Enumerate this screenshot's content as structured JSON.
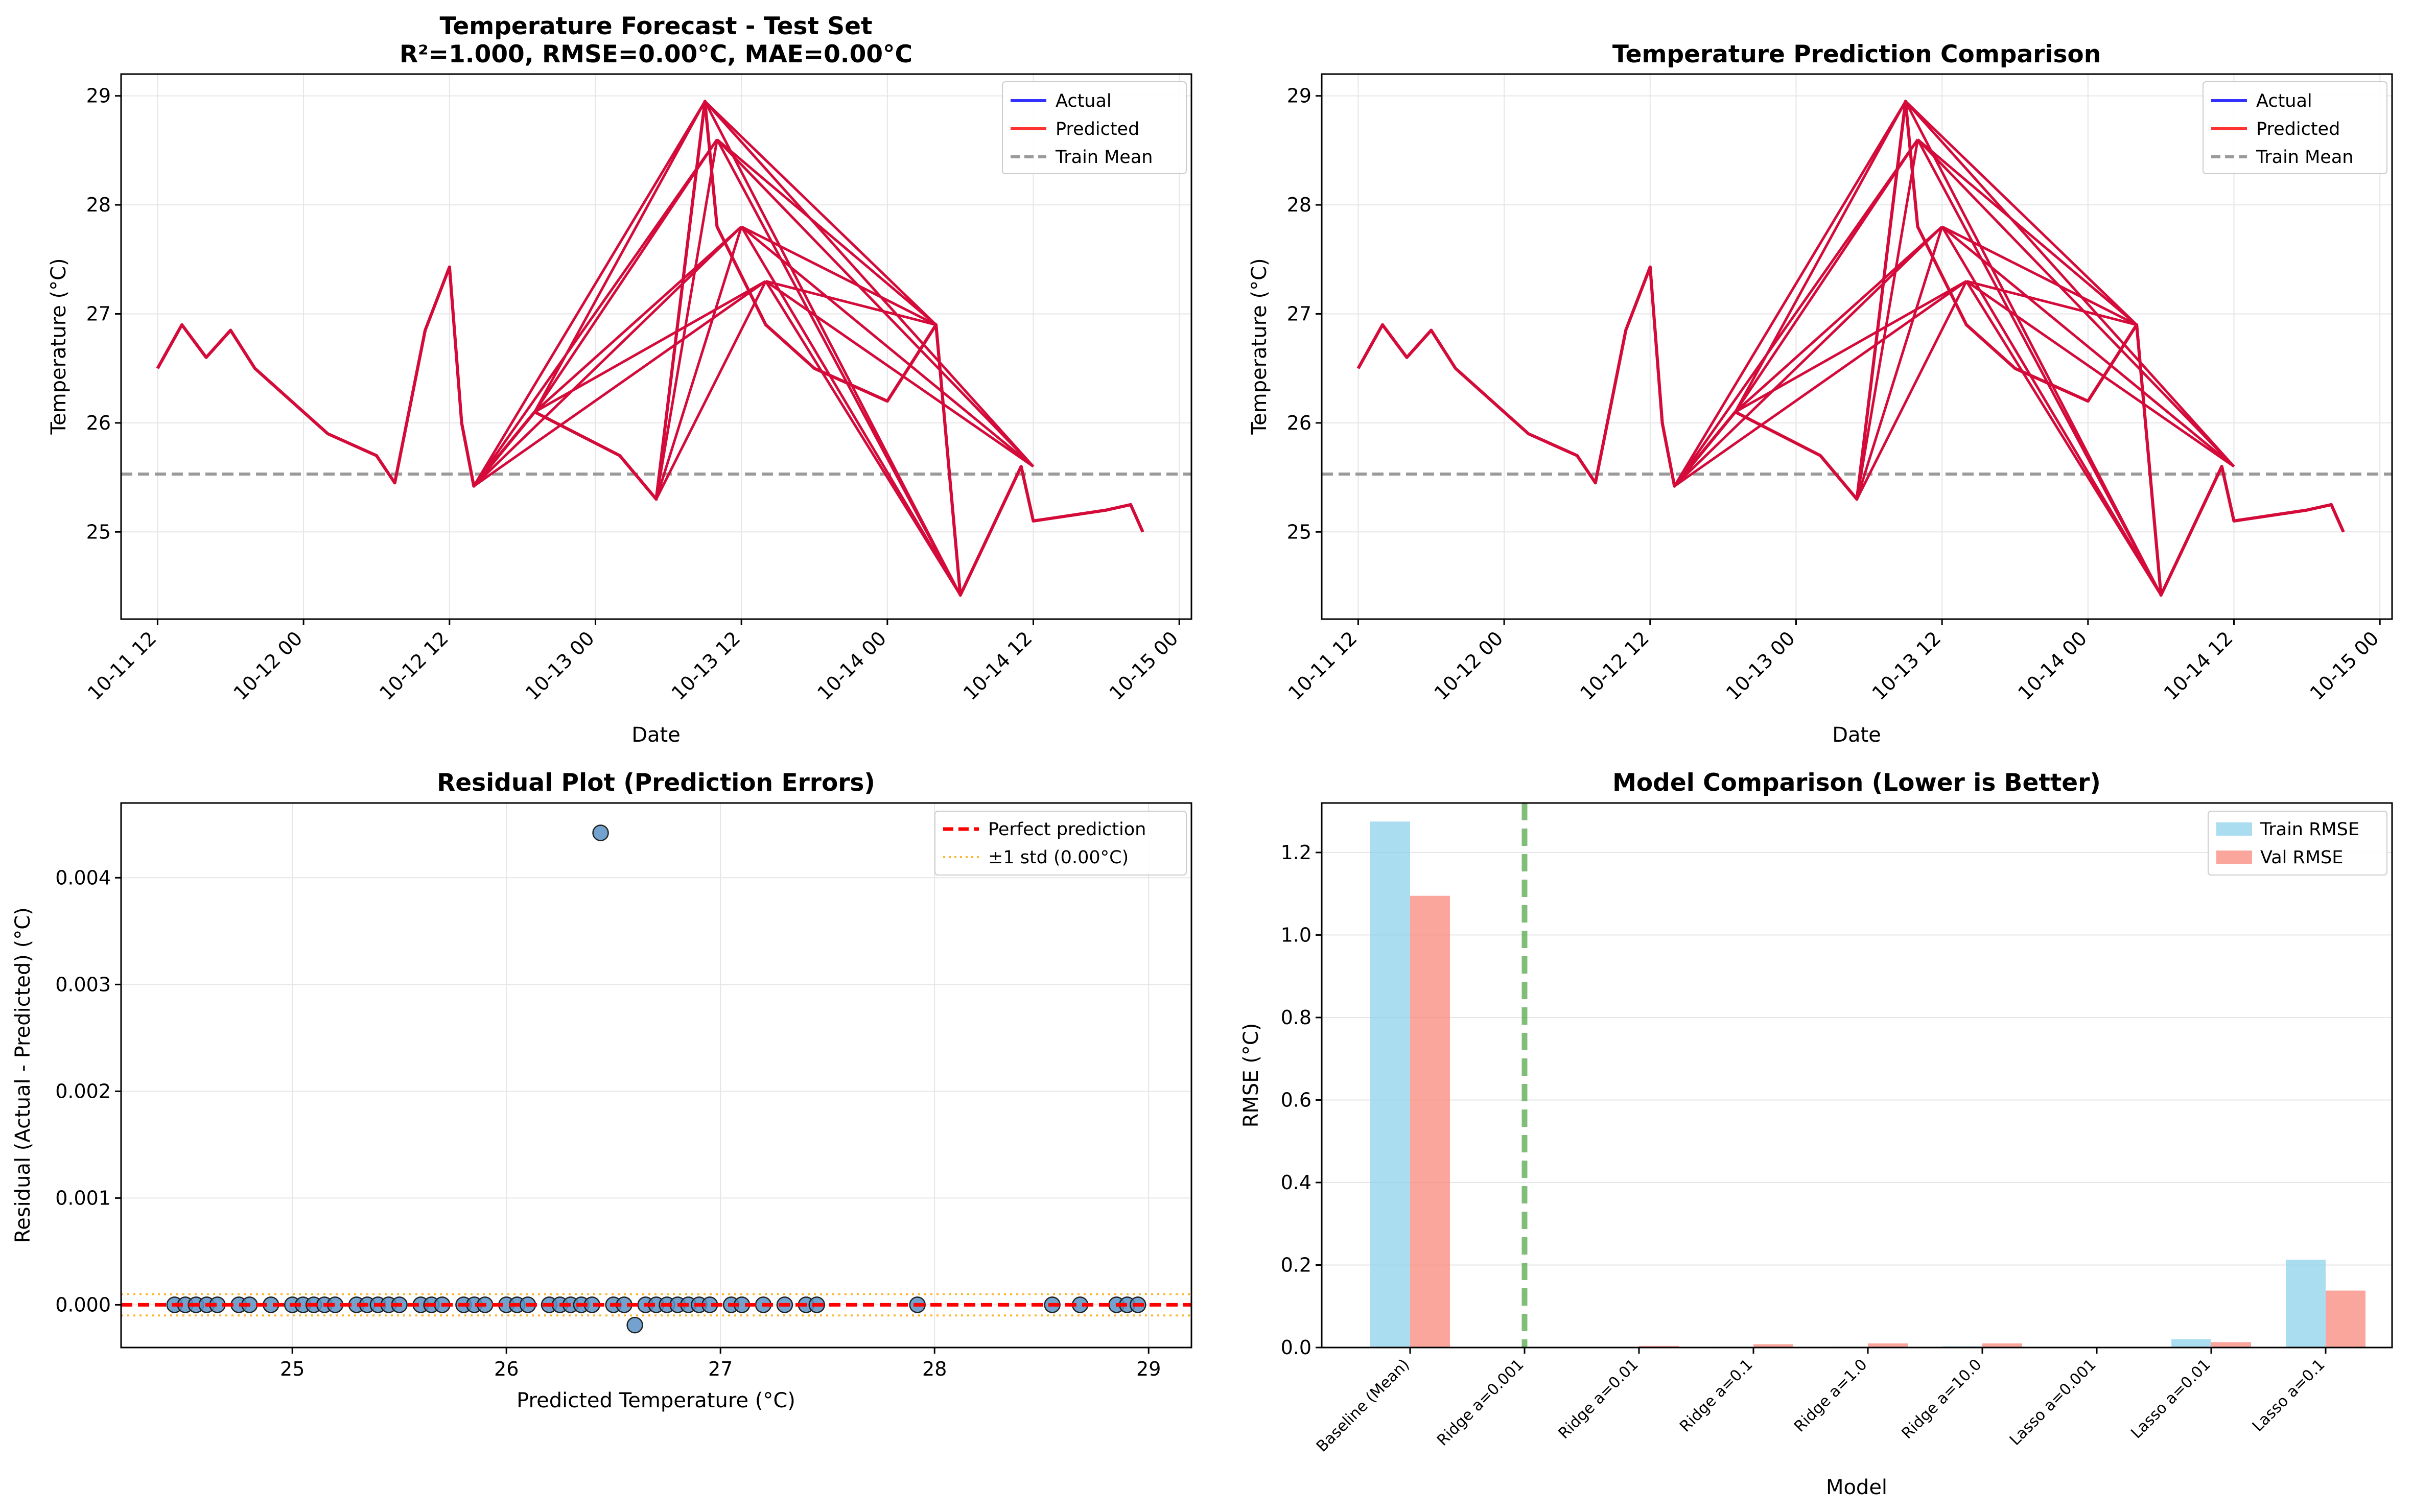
{
  "charts": [
    {
      "title_line1": "Temperature Forecast - Test Set",
      "title_line2": "R²=1.000, RMSE=0.00°C, MAE=0.00°C",
      "xlabel": "Date",
      "ylabel": "Temperature (°C)",
      "xticks": [
        "10-11 12",
        "10-12 00",
        "10-12 12",
        "10-13 00",
        "10-13 12",
        "10-14 00",
        "10-14 12",
        "10-15 00"
      ],
      "yticks": [
        "25",
        "26",
        "27",
        "28",
        "29"
      ],
      "legend": [
        "Actual",
        "Predicted",
        "Train Mean"
      ]
    },
    {
      "title_line1": "Temperature Prediction Comparison",
      "xlabel": "Date",
      "ylabel": "Temperature (°C)",
      "xticks": [
        "10-11 12",
        "10-12 00",
        "10-12 12",
        "10-13 00",
        "10-13 12",
        "10-14 00",
        "10-14 12",
        "10-15 00"
      ],
      "yticks": [
        "25",
        "26",
        "27",
        "28",
        "29"
      ],
      "legend": [
        "Actual",
        "Predicted",
        "Train Mean"
      ]
    },
    {
      "title_line1": "Residual Plot (Prediction Errors)",
      "xlabel": "Predicted Temperature (°C)",
      "ylabel": "Residual (Actual - Predicted) (°C)",
      "xticks": [
        "25",
        "26",
        "27",
        "28",
        "29"
      ],
      "yticks": [
        "0.000",
        "0.001",
        "0.002",
        "0.003",
        "0.004"
      ],
      "legend": [
        "Perfect prediction",
        "±1 std (0.00°C)"
      ]
    },
    {
      "title_line1": "Model Comparison (Lower is Better)",
      "xlabel": "Model",
      "ylabel": "RMSE (°C)",
      "xticks": [
        "Baseline (Mean)",
        "Ridge a=0.001",
        "Ridge a=0.01",
        "Ridge a=0.1",
        "Ridge a=1.0",
        "Ridge a=10.0",
        "Lasso a=0.001",
        "Lasso a=0.01",
        "Lasso a=0.1"
      ],
      "yticks": [
        "0.0",
        "0.2",
        "0.4",
        "0.6",
        "0.8",
        "1.0",
        "1.2"
      ],
      "legend": [
        "Train RMSE",
        "Val RMSE"
      ]
    }
  ],
  "colors": {
    "actual": "#0000ff",
    "predicted": "#ff0000",
    "overlap": "#d40b3a",
    "train_mean": "#9a9a9a",
    "scatter": "#5b92c6",
    "perfect": "#ff0000",
    "std": "#ffa500",
    "train_bar": "#87ceeb",
    "val_bar": "#fa8072",
    "best_line": "#4aa23f",
    "grid": "#e6e6e6"
  },
  "chart_data": [
    {
      "type": "line",
      "ylim": [
        24.2,
        29.2
      ],
      "xlim": [
        "2025-10-11 09:00",
        "2025-10-15 01:00"
      ],
      "train_mean": 25.53,
      "series": [
        {
          "name": "Actual",
          "x": [
            "2025-10-11 12:00",
            "2025-10-11 14:00",
            "2025-10-11 16:00",
            "2025-10-11 18:00",
            "2025-10-11 20:00",
            "2025-10-11 22:00",
            "2025-10-12 02:00",
            "2025-10-12 06:00",
            "2025-10-12 07:30",
            "2025-10-12 10:00",
            "2025-10-12 12:00",
            "2025-10-12 13:00",
            "2025-10-12 14:00",
            "2025-10-12 19:00",
            "2025-10-13 02:00",
            "2025-10-13 05:00",
            "2025-10-13 09:00",
            "2025-10-13 10:00",
            "2025-10-13 14:00",
            "2025-10-13 18:00",
            "2025-10-14 00:00",
            "2025-10-14 04:00",
            "2025-10-14 06:00",
            "2025-10-14 11:00",
            "2025-10-14 12:00",
            "2025-10-14 18:00",
            "2025-10-14 20:00",
            "2025-10-14 21:00"
          ],
          "y": [
            26.5,
            26.9,
            26.6,
            26.85,
            26.5,
            26.3,
            25.9,
            25.7,
            25.45,
            26.85,
            27.43,
            26.0,
            25.42,
            26.1,
            25.7,
            25.3,
            28.95,
            27.8,
            26.9,
            26.5,
            26.2,
            26.9,
            24.42,
            25.6,
            25.1,
            25.2,
            25.25,
            25.0
          ]
        },
        {
          "name": "Predicted",
          "x": [
            "2025-10-11 12:00",
            "2025-10-11 14:00",
            "2025-10-11 16:00",
            "2025-10-11 18:00",
            "2025-10-11 20:00",
            "2025-10-11 22:00",
            "2025-10-12 02:00",
            "2025-10-12 06:00",
            "2025-10-12 07:30",
            "2025-10-12 10:00",
            "2025-10-12 12:00",
            "2025-10-12 13:00",
            "2025-10-12 14:00",
            "2025-10-12 19:00",
            "2025-10-13 02:00",
            "2025-10-13 05:00",
            "2025-10-13 09:00",
            "2025-10-13 10:00",
            "2025-10-13 14:00",
            "2025-10-13 18:00",
            "2025-10-14 00:00",
            "2025-10-14 04:00",
            "2025-10-14 06:00",
            "2025-10-14 11:00",
            "2025-10-14 12:00",
            "2025-10-14 18:00",
            "2025-10-14 20:00",
            "2025-10-14 21:00"
          ],
          "y": [
            26.5,
            26.9,
            26.6,
            26.85,
            26.5,
            26.3,
            25.9,
            25.7,
            25.45,
            26.85,
            27.43,
            26.0,
            25.42,
            26.1,
            25.7,
            25.3,
            28.95,
            27.8,
            26.9,
            26.5,
            26.2,
            26.9,
            24.42,
            25.6,
            25.1,
            25.2,
            25.25,
            25.0
          ]
        }
      ]
    },
    {
      "type": "line",
      "ylim": [
        24.2,
        29.2
      ],
      "xlim": [
        "2025-10-11 09:00",
        "2025-10-15 01:00"
      ],
      "train_mean": 25.53,
      "series": [
        {
          "name": "Actual",
          "x": [
            "2025-10-11 12:00",
            "2025-10-11 14:00",
            "2025-10-11 16:00",
            "2025-10-11 18:00",
            "2025-10-11 20:00",
            "2025-10-11 22:00",
            "2025-10-12 02:00",
            "2025-10-12 06:00",
            "2025-10-12 07:30",
            "2025-10-12 10:00",
            "2025-10-12 12:00",
            "2025-10-12 13:00",
            "2025-10-12 14:00",
            "2025-10-12 19:00",
            "2025-10-13 02:00",
            "2025-10-13 05:00",
            "2025-10-13 09:00",
            "2025-10-13 10:00",
            "2025-10-13 14:00",
            "2025-10-13 18:00",
            "2025-10-14 00:00",
            "2025-10-14 04:00",
            "2025-10-14 06:00",
            "2025-10-14 11:00",
            "2025-10-14 12:00",
            "2025-10-14 18:00",
            "2025-10-14 20:00",
            "2025-10-14 21:00"
          ],
          "y": [
            26.5,
            26.9,
            26.6,
            26.85,
            26.5,
            26.3,
            25.9,
            25.7,
            25.45,
            26.85,
            27.43,
            26.0,
            25.42,
            26.1,
            25.7,
            25.3,
            28.95,
            27.8,
            26.9,
            26.5,
            26.2,
            26.9,
            24.42,
            25.6,
            25.1,
            25.2,
            25.25,
            25.0
          ]
        },
        {
          "name": "Predicted",
          "x": [
            "2025-10-11 12:00",
            "2025-10-11 14:00",
            "2025-10-11 16:00",
            "2025-10-11 18:00",
            "2025-10-11 20:00",
            "2025-10-11 22:00",
            "2025-10-12 02:00",
            "2025-10-12 06:00",
            "2025-10-12 07:30",
            "2025-10-12 10:00",
            "2025-10-12 12:00",
            "2025-10-12 13:00",
            "2025-10-12 14:00",
            "2025-10-12 19:00",
            "2025-10-13 02:00",
            "2025-10-13 05:00",
            "2025-10-13 09:00",
            "2025-10-13 10:00",
            "2025-10-13 14:00",
            "2025-10-13 18:00",
            "2025-10-14 00:00",
            "2025-10-14 04:00",
            "2025-10-14 06:00",
            "2025-10-14 11:00",
            "2025-10-14 12:00",
            "2025-10-14 18:00",
            "2025-10-14 20:00",
            "2025-10-14 21:00"
          ],
          "y": [
            26.5,
            26.9,
            26.6,
            26.85,
            26.5,
            26.3,
            25.9,
            25.7,
            25.45,
            26.85,
            27.43,
            26.0,
            25.42,
            26.1,
            25.7,
            25.3,
            28.95,
            27.8,
            26.9,
            26.5,
            26.2,
            26.9,
            24.42,
            25.6,
            25.1,
            25.2,
            25.25,
            25.0
          ]
        }
      ]
    },
    {
      "type": "scatter",
      "xlim": [
        24.2,
        29.2
      ],
      "ylim": [
        -0.0004,
        0.0047
      ],
      "std": 0.0001,
      "x": [
        24.45,
        24.5,
        24.55,
        24.6,
        24.65,
        24.75,
        24.8,
        24.9,
        25.0,
        25.05,
        25.1,
        25.15,
        25.2,
        25.3,
        25.35,
        25.4,
        25.45,
        25.5,
        25.6,
        25.65,
        25.7,
        25.8,
        25.85,
        25.9,
        26.0,
        26.05,
        26.1,
        26.2,
        26.25,
        26.3,
        26.35,
        26.4,
        26.44,
        26.5,
        26.55,
        26.6,
        26.65,
        26.7,
        26.75,
        26.8,
        26.85,
        26.9,
        26.95,
        27.05,
        27.1,
        27.2,
        27.3,
        27.4,
        27.45,
        27.92,
        28.55,
        28.68,
        28.85,
        28.9,
        28.95
      ],
      "y": [
        0.0,
        0.0,
        0.0,
        0.0,
        0.0,
        0.0,
        0.0,
        0.0,
        0.0,
        0.0,
        0.0,
        0.0,
        0.0,
        0.0,
        0.0,
        0.0,
        0.0,
        0.0,
        0.0,
        0.0,
        0.0,
        0.0,
        0.0,
        0.0,
        0.0,
        0.0,
        0.0,
        0.0,
        0.0,
        0.0,
        0.0,
        0.0,
        0.00442,
        0.0,
        0.0,
        -0.00019,
        0.0,
        0.0,
        0.0,
        0.0,
        0.0,
        0.0,
        0.0,
        0.0,
        0.0,
        0.0,
        0.0,
        0.0,
        0.0,
        0.0,
        0.0,
        0.0,
        0.0,
        0.0,
        0.0
      ]
    },
    {
      "type": "bar",
      "ylim": [
        0,
        1.32
      ],
      "best_index": 1,
      "categories": [
        "Baseline (Mean)",
        "Ridge a=0.001",
        "Ridge a=0.01",
        "Ridge a=0.1",
        "Ridge a=1.0",
        "Ridge a=10.0",
        "Lasso a=0.001",
        "Lasso a=0.01",
        "Lasso a=0.1"
      ],
      "series": [
        {
          "name": "Train RMSE",
          "values": [
            1.275,
            0.0005,
            0.001,
            0.002,
            0.002,
            0.003,
            0.001,
            0.02,
            0.213
          ]
        },
        {
          "name": "Val RMSE",
          "values": [
            1.095,
            0.001,
            0.004,
            0.008,
            0.01,
            0.01,
            0.001,
            0.013,
            0.138
          ]
        }
      ]
    }
  ]
}
